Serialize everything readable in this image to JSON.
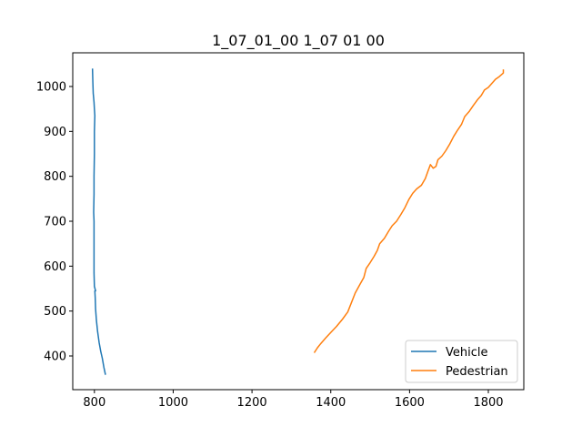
{
  "chart_data": {
    "type": "line",
    "title": "1_07_01_00 1_07 01 00",
    "xlabel": "",
    "ylabel": "",
    "xlim": [
      745,
      1890
    ],
    "ylim": [
      325,
      1075
    ],
    "xticks": [
      800,
      1000,
      1200,
      1400,
      1600,
      1800
    ],
    "yticks": [
      400,
      500,
      600,
      700,
      800,
      900,
      1000
    ],
    "xtick_labels": [
      "800",
      "1000",
      "1200",
      "1400",
      "1600",
      "1800"
    ],
    "ytick_labels": [
      "400",
      "500",
      "600",
      "700",
      "800",
      "900",
      "1000"
    ],
    "grid": false,
    "legend_position": "lower-right",
    "series": [
      {
        "name": "Vehicle",
        "color": "#1f77b4",
        "points": [
          [
            795,
            1040
          ],
          [
            796,
            1010
          ],
          [
            797,
            985
          ],
          [
            799,
            965
          ],
          [
            800,
            950
          ],
          [
            801,
            935
          ],
          [
            800,
            900
          ],
          [
            800,
            850
          ],
          [
            799,
            800
          ],
          [
            799,
            760
          ],
          [
            798,
            720
          ],
          [
            799,
            700
          ],
          [
            799,
            660
          ],
          [
            799,
            620
          ],
          [
            799,
            585
          ],
          [
            800,
            555
          ],
          [
            803,
            545
          ],
          [
            801,
            545
          ],
          [
            802,
            530
          ],
          [
            803,
            505
          ],
          [
            805,
            480
          ],
          [
            808,
            455
          ],
          [
            812,
            430
          ],
          [
            816,
            410
          ],
          [
            820,
            395
          ],
          [
            824,
            375
          ],
          [
            828,
            358
          ]
        ]
      },
      {
        "name": "Pedestrian",
        "color": "#ff7f0e",
        "points": [
          [
            1358,
            407
          ],
          [
            1366,
            418
          ],
          [
            1375,
            428
          ],
          [
            1387,
            440
          ],
          [
            1400,
            452
          ],
          [
            1415,
            466
          ],
          [
            1430,
            482
          ],
          [
            1443,
            498
          ],
          [
            1452,
            518
          ],
          [
            1462,
            540
          ],
          [
            1473,
            558
          ],
          [
            1484,
            575
          ],
          [
            1490,
            595
          ],
          [
            1500,
            608
          ],
          [
            1510,
            622
          ],
          [
            1518,
            635
          ],
          [
            1524,
            650
          ],
          [
            1536,
            662
          ],
          [
            1547,
            678
          ],
          [
            1556,
            690
          ],
          [
            1567,
            700
          ],
          [
            1578,
            715
          ],
          [
            1588,
            730
          ],
          [
            1598,
            748
          ],
          [
            1608,
            762
          ],
          [
            1618,
            772
          ],
          [
            1630,
            780
          ],
          [
            1640,
            795
          ],
          [
            1647,
            812
          ],
          [
            1653,
            826
          ],
          [
            1660,
            818
          ],
          [
            1667,
            822
          ],
          [
            1672,
            837
          ],
          [
            1682,
            845
          ],
          [
            1692,
            857
          ],
          [
            1702,
            872
          ],
          [
            1712,
            889
          ],
          [
            1722,
            903
          ],
          [
            1732,
            916
          ],
          [
            1740,
            933
          ],
          [
            1752,
            945
          ],
          [
            1762,
            958
          ],
          [
            1772,
            970
          ],
          [
            1782,
            980
          ],
          [
            1790,
            992
          ],
          [
            1800,
            998
          ],
          [
            1810,
            1008
          ],
          [
            1818,
            1016
          ],
          [
            1828,
            1022
          ],
          [
            1838,
            1030
          ],
          [
            1838,
            1038
          ]
        ]
      }
    ]
  }
}
